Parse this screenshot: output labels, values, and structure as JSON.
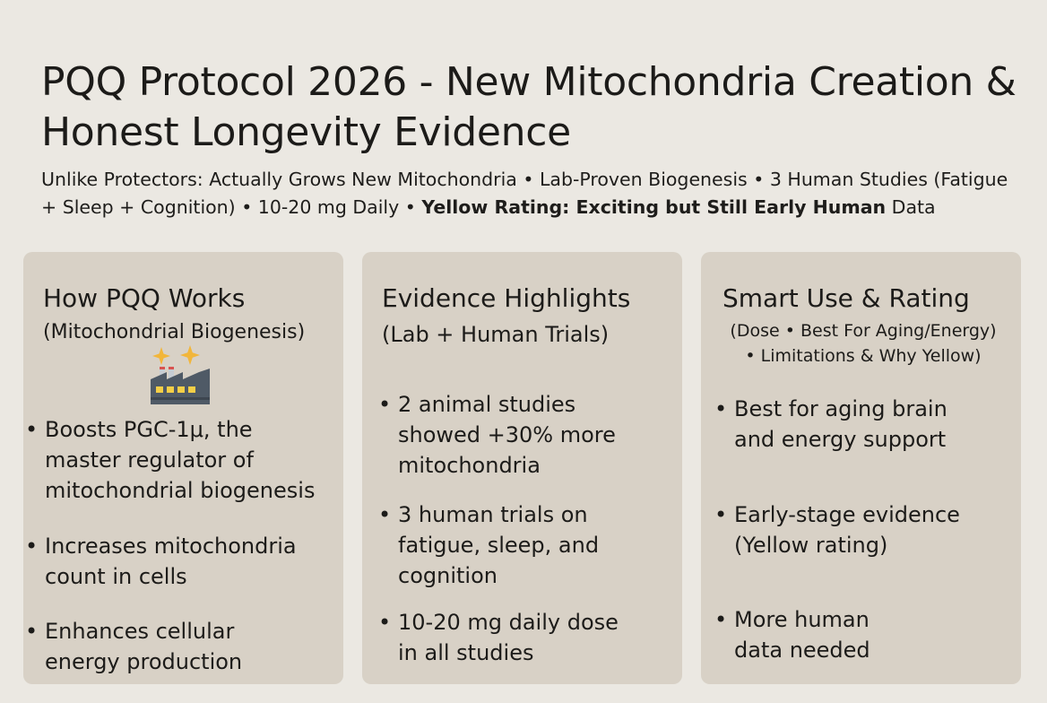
{
  "header": {
    "title": "PQQ Protocol 2026 - New Mitochondria Creation & Honest Longevity Evidence",
    "subtitle_plain": "Unlike Protectors: Actually Grows New Mitochondria • Lab-Proven Biogenesis • 3 Human Studies (Fatigue + Sleep + Cognition) • 10-20 mg Daily • ",
    "subtitle_bold": "Yellow Rating: Exciting but Still Early Human",
    "subtitle_tail": " Data"
  },
  "cards": [
    {
      "heading": "How PQQ Works",
      "subheading": "(Mitochondrial Biogenesis)",
      "icon": "factory-sparkle-icon",
      "bullets": [
        "Boosts PGC-1μ, the\nmaster regulator of\nmitochondrial biogenesis",
        "Increases mitochondria\ncount in cells",
        "Enhances cellular\nenergy production"
      ]
    },
    {
      "heading": "Evidence Highlights",
      "subheading": "(Lab + Human Trials)",
      "bullets": [
        "2 animal studies\nshowed +30% more\nmitochondria",
        "3 human trials on\nfatigue, sleep, and\ncognition",
        "10-20 mg daily dose\nin all studies"
      ]
    },
    {
      "heading": "Smart Use & Rating",
      "subheading": "(Dose • Best For Aging/Energy)\n• Limitations & Why Yellow)",
      "bullets": [
        "Best for aging brain\nand energy support",
        "Early-stage evidence\n(Yellow rating)",
        "More human\ndata needed"
      ]
    }
  ],
  "colors": {
    "background": "#ebe8e2",
    "card": "#d8d1c6",
    "text": "#1c1b19",
    "sparkle": "#f2b63a",
    "factory": "#4f5a66"
  }
}
